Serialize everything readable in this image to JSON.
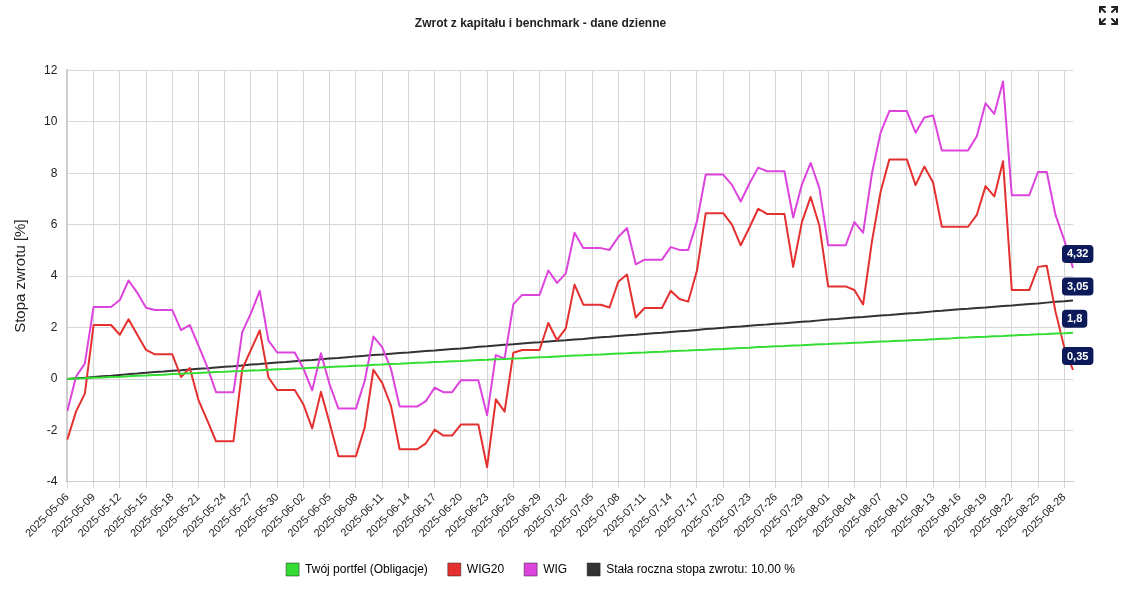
{
  "chart_data": {
    "type": "line",
    "title": "Zwrot z kapitału i benchmark - dane dzienne",
    "ylabel": "Stopa zwrotu [%]",
    "categories": [
      "2025-05-06",
      null,
      null,
      "2025-05-09",
      null,
      null,
      "2025-05-12",
      null,
      null,
      "2025-05-15",
      null,
      null,
      "2025-05-18",
      null,
      null,
      "2025-05-21",
      null,
      null,
      "2025-05-24",
      null,
      null,
      "2025-05-27",
      null,
      null,
      "2025-05-30",
      null,
      null,
      "2025-06-02",
      null,
      null,
      "2025-06-05",
      null,
      null,
      "2025-06-08",
      null,
      null,
      "2025-06-11",
      null,
      null,
      "2025-06-14",
      null,
      null,
      "2025-06-17",
      null,
      null,
      "2025-06-20",
      null,
      null,
      "2025-06-23",
      null,
      null,
      "2025-06-26",
      null,
      null,
      "2025-06-29",
      null,
      null,
      "2025-07-02",
      null,
      null,
      "2025-07-05",
      null,
      null,
      "2025-07-08",
      null,
      null,
      "2025-07-11",
      null,
      null,
      "2025-07-14",
      null,
      null,
      "2025-07-17",
      null,
      null,
      "2025-07-20",
      null,
      null,
      "2025-07-23",
      null,
      null,
      "2025-07-26",
      null,
      null,
      "2025-07-29",
      null,
      null,
      "2025-08-01",
      null,
      null,
      "2025-08-04",
      null,
      null,
      "2025-08-07",
      null,
      null,
      "2025-08-10",
      null,
      null,
      "2025-08-13",
      null,
      null,
      "2025-08-16",
      null,
      null,
      "2025-08-19",
      null,
      null,
      "2025-08-22",
      null,
      null,
      "2025-08-25",
      null,
      null,
      "2025-08-28",
      null
    ],
    "series": [
      {
        "name": "Twój portfel (Obligacje)",
        "color": "#33dd33",
        "values": [
          0,
          0.02,
          0.03,
          0.05,
          0.06,
          0.08,
          0.09,
          0.11,
          0.13,
          0.14,
          0.16,
          0.17,
          0.19,
          0.2,
          0.22,
          0.23,
          0.25,
          0.27,
          0.28,
          0.3,
          0.31,
          0.33,
          0.34,
          0.36,
          0.38,
          0.39,
          0.41,
          0.42,
          0.44,
          0.45,
          0.47,
          0.49,
          0.5,
          0.52,
          0.53,
          0.55,
          0.56,
          0.58,
          0.59,
          0.61,
          0.63,
          0.64,
          0.66,
          0.67,
          0.69,
          0.7,
          0.72,
          0.74,
          0.75,
          0.77,
          0.78,
          0.8,
          0.81,
          0.83,
          0.85,
          0.86,
          0.88,
          0.89,
          0.91,
          0.92,
          0.94,
          0.95,
          0.97,
          0.99,
          1,
          1.02,
          1.03,
          1.05,
          1.06,
          1.08,
          1.1,
          1.11,
          1.13,
          1.14,
          1.16,
          1.17,
          1.19,
          1.21,
          1.22,
          1.24,
          1.25,
          1.27,
          1.28,
          1.3,
          1.31,
          1.33,
          1.35,
          1.36,
          1.38,
          1.39,
          1.41,
          1.42,
          1.44,
          1.46,
          1.47,
          1.49,
          1.5,
          1.52,
          1.53,
          1.55,
          1.57,
          1.58,
          1.6,
          1.61,
          1.63,
          1.64,
          1.66,
          1.67,
          1.69,
          1.71,
          1.72,
          1.74,
          1.75,
          1.77,
          1.78,
          1.8
        ],
        "value_labels": [
          null,
          null,
          null,
          null,
          null,
          null,
          null,
          null,
          null,
          null,
          null,
          null,
          null,
          null,
          null,
          null,
          null,
          null,
          null,
          null,
          null,
          null,
          null,
          null,
          null,
          null,
          null,
          null,
          null,
          null,
          null,
          null,
          null,
          null,
          null,
          null,
          null,
          null,
          null,
          null,
          null,
          null,
          null,
          null,
          null,
          null,
          null,
          null,
          null,
          null,
          null,
          null,
          null,
          null,
          null,
          null,
          null,
          null,
          null,
          null,
          null,
          null,
          null,
          null,
          null,
          null,
          null,
          null,
          null,
          null,
          null,
          null,
          null,
          null,
          null,
          null,
          null,
          null,
          null,
          null,
          null,
          null,
          null,
          null,
          null,
          null,
          null,
          null,
          null,
          null,
          null,
          null,
          null,
          null,
          null,
          null,
          null,
          null,
          null,
          null,
          null,
          null,
          null,
          null,
          null,
          null,
          null,
          null,
          null,
          null,
          null,
          null,
          null,
          null,
          null,
          "1,8"
        ]
      },
      {
        "name": "WIG20",
        "color": "#e53030",
        "values": [
          -2.35,
          -1.26,
          -0.57,
          2.1,
          2.1,
          2.1,
          1.72,
          2.32,
          1.72,
          1.13,
          0.96,
          0.96,
          0.96,
          0.08,
          0.43,
          -0.82,
          -1.61,
          -2.42,
          -2.42,
          -2.42,
          0.38,
          1.14,
          1.89,
          0.06,
          -0.43,
          -0.43,
          -0.43,
          -0.99,
          -1.92,
          -0.5,
          -1.72,
          -3.0,
          -3.0,
          -3.0,
          -1.89,
          0.36,
          -0.15,
          -1.03,
          -2.73,
          -2.73,
          -2.73,
          -2.5,
          -1.97,
          -2.2,
          -2.2,
          -1.77,
          -1.77,
          -1.77,
          -3.43,
          -0.79,
          -1.27,
          1.02,
          1.13,
          1.13,
          1.13,
          2.18,
          1.51,
          1.97,
          3.67,
          2.89,
          2.89,
          2.89,
          2.78,
          3.78,
          4.06,
          2.39,
          2.76,
          2.76,
          2.76,
          3.43,
          3.11,
          3.01,
          4.22,
          6.45,
          6.45,
          6.45,
          6.0,
          5.2,
          5.89,
          6.62,
          6.42,
          6.42,
          6.42,
          4.36,
          6.1,
          7.08,
          5.96,
          3.6,
          3.6,
          3.6,
          3.46,
          2.9,
          5.33,
          7.28,
          8.54,
          8.54,
          8.54,
          7.54,
          8.26,
          7.64,
          5.92,
          5.92,
          5.92,
          5.92,
          6.38,
          7.5,
          7.1,
          8.47,
          3.46,
          3.46,
          3.46,
          4.36,
          4.4,
          2.62,
          1.23,
          0.35
        ],
        "value_labels": [
          null,
          null,
          null,
          null,
          null,
          null,
          null,
          null,
          null,
          null,
          null,
          null,
          null,
          null,
          null,
          null,
          null,
          null,
          null,
          null,
          null,
          null,
          null,
          null,
          null,
          null,
          null,
          null,
          null,
          null,
          null,
          null,
          null,
          null,
          null,
          null,
          null,
          null,
          null,
          null,
          null,
          null,
          null,
          null,
          null,
          null,
          null,
          null,
          null,
          null,
          null,
          null,
          null,
          null,
          null,
          null,
          null,
          null,
          null,
          null,
          null,
          null,
          null,
          null,
          null,
          null,
          null,
          null,
          null,
          null,
          null,
          null,
          null,
          null,
          null,
          null,
          null,
          null,
          null,
          null,
          null,
          null,
          null,
          null,
          null,
          null,
          null,
          null,
          null,
          null,
          null,
          null,
          null,
          null,
          null,
          null,
          null,
          null,
          null,
          null,
          null,
          null,
          null,
          null,
          null,
          null,
          null,
          null,
          null,
          null,
          null,
          null,
          null,
          null,
          null,
          "0,35"
        ]
      },
      {
        "name": "WIG",
        "color": "#dd44dd",
        "values": [
          -1.24,
          0.1,
          0.6,
          2.8,
          2.8,
          2.8,
          3.07,
          3.83,
          3.35,
          2.77,
          2.68,
          2.68,
          2.68,
          1.9,
          2.1,
          1.3,
          0.47,
          -0.51,
          -0.51,
          -0.51,
          1.82,
          2.56,
          3.43,
          1.49,
          1.03,
          1.03,
          1.03,
          0.4,
          -0.44,
          1.0,
          -0.22,
          -1.15,
          -1.15,
          -1.15,
          -0.08,
          1.65,
          1.24,
          0.4,
          -1.07,
          -1.07,
          -1.07,
          -0.86,
          -0.34,
          -0.51,
          -0.51,
          -0.05,
          -0.05,
          -0.05,
          -1.41,
          0.93,
          0.79,
          2.9,
          3.27,
          3.27,
          3.27,
          4.22,
          3.74,
          4.11,
          5.69,
          5.09,
          5.09,
          5.09,
          5.02,
          5.52,
          5.87,
          4.46,
          4.64,
          4.64,
          4.64,
          5.13,
          5.02,
          5.02,
          6.13,
          7.95,
          7.95,
          7.95,
          7.55,
          6.9,
          7.6,
          8.22,
          8.08,
          8.08,
          8.08,
          6.28,
          7.56,
          8.4,
          7.42,
          5.2,
          5.2,
          5.2,
          6.1,
          5.69,
          7.98,
          9.58,
          10.42,
          10.42,
          10.42,
          9.58,
          10.17,
          10.25,
          8.89,
          8.89,
          8.89,
          8.89,
          9.44,
          10.72,
          10.31,
          11.57,
          7.15,
          7.15,
          7.15,
          8.05,
          8.05,
          6.38,
          5.4,
          4.32
        ],
        "value_labels": [
          null,
          null,
          null,
          null,
          null,
          null,
          null,
          null,
          null,
          null,
          null,
          null,
          null,
          null,
          null,
          null,
          null,
          null,
          null,
          null,
          null,
          null,
          null,
          null,
          null,
          null,
          null,
          null,
          null,
          null,
          null,
          null,
          null,
          null,
          null,
          null,
          null,
          null,
          null,
          null,
          null,
          null,
          null,
          null,
          null,
          null,
          null,
          null,
          null,
          null,
          null,
          null,
          null,
          null,
          null,
          null,
          null,
          null,
          null,
          null,
          null,
          null,
          null,
          null,
          null,
          null,
          null,
          null,
          null,
          null,
          null,
          null,
          null,
          null,
          null,
          null,
          null,
          null,
          null,
          null,
          null,
          null,
          null,
          null,
          null,
          null,
          null,
          null,
          null,
          null,
          null,
          null,
          null,
          null,
          null,
          null,
          null,
          null,
          null,
          null,
          null,
          null,
          null,
          null,
          null,
          null,
          null,
          null,
          null,
          null,
          null,
          null,
          null,
          null,
          null,
          "4,32"
        ]
      },
      {
        "name": "Stała roczna stopa zwrotu: 10.00 %",
        "color": "#333333",
        "values": [
          0,
          0.03,
          0.05,
          0.08,
          0.11,
          0.13,
          0.16,
          0.19,
          0.21,
          0.24,
          0.27,
          0.29,
          0.32,
          0.34,
          0.37,
          0.4,
          0.42,
          0.45,
          0.48,
          0.5,
          0.53,
          0.56,
          0.58,
          0.61,
          0.64,
          0.66,
          0.69,
          0.72,
          0.74,
          0.77,
          0.8,
          0.82,
          0.85,
          0.88,
          0.9,
          0.93,
          0.95,
          0.98,
          1.01,
          1.03,
          1.06,
          1.09,
          1.11,
          1.14,
          1.17,
          1.19,
          1.22,
          1.25,
          1.27,
          1.3,
          1.33,
          1.35,
          1.38,
          1.41,
          1.43,
          1.46,
          1.49,
          1.51,
          1.54,
          1.56,
          1.59,
          1.62,
          1.64,
          1.67,
          1.7,
          1.72,
          1.75,
          1.78,
          1.8,
          1.83,
          1.86,
          1.88,
          1.91,
          1.94,
          1.96,
          1.99,
          2.02,
          2.04,
          2.07,
          2.1,
          2.12,
          2.15,
          2.17,
          2.2,
          2.23,
          2.25,
          2.28,
          2.31,
          2.33,
          2.36,
          2.39,
          2.41,
          2.44,
          2.47,
          2.49,
          2.52,
          2.55,
          2.57,
          2.6,
          2.63,
          2.65,
          2.68,
          2.71,
          2.73,
          2.76,
          2.78,
          2.81,
          2.84,
          2.86,
          2.89,
          2.92,
          2.94,
          2.97,
          3,
          3.02,
          3.05
        ],
        "value_labels": [
          null,
          null,
          null,
          null,
          null,
          null,
          null,
          null,
          null,
          null,
          null,
          null,
          null,
          null,
          null,
          null,
          null,
          null,
          null,
          null,
          null,
          null,
          null,
          null,
          null,
          null,
          null,
          null,
          null,
          null,
          null,
          null,
          null,
          null,
          null,
          null,
          null,
          null,
          null,
          null,
          null,
          null,
          null,
          null,
          null,
          null,
          null,
          null,
          null,
          null,
          null,
          null,
          null,
          null,
          null,
          null,
          null,
          null,
          null,
          null,
          null,
          null,
          null,
          null,
          null,
          null,
          null,
          null,
          null,
          null,
          null,
          null,
          null,
          null,
          null,
          null,
          null,
          null,
          null,
          null,
          null,
          null,
          null,
          null,
          null,
          null,
          null,
          null,
          null,
          null,
          null,
          null,
          null,
          null,
          null,
          null,
          null,
          null,
          null,
          null,
          null,
          null,
          null,
          null,
          null,
          null,
          null,
          null,
          null,
          null,
          null,
          null,
          null,
          null,
          null,
          "3,05"
        ]
      }
    ],
    "ylim": [
      -4,
      12
    ],
    "yticks": [
      -4,
      -2,
      0,
      2,
      4,
      6,
      8,
      10,
      12
    ],
    "grid": true,
    "legend": "bottom"
  }
}
